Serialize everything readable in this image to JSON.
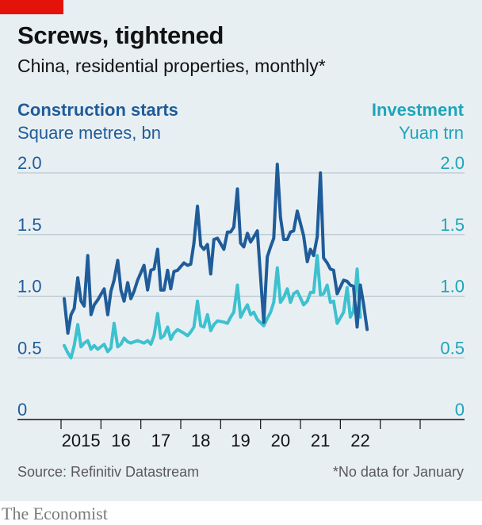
{
  "header": {
    "title": "Screws, tightened",
    "subtitle": "China, residential properties, monthly*"
  },
  "left_axis": {
    "title": "Construction starts",
    "unit": "Square metres, bn"
  },
  "right_axis": {
    "title": "Investment",
    "unit": "Yuan trn"
  },
  "footer": {
    "source": "Source: Refinitiv Datastream",
    "note": "*No data for January",
    "logo": "The Economist"
  },
  "colors": {
    "construction": "#1f5c99",
    "investment": "#3ec1cf",
    "accent": "#e3120b"
  },
  "chart_data": {
    "type": "line",
    "title": "Screws, tightened",
    "subtitle": "China, residential properties, monthly*",
    "x_ticks": [
      "2015",
      "16",
      "17",
      "18",
      "19",
      "20",
      "21",
      "22"
    ],
    "y_ticks": [
      "0",
      "0.5",
      "1.0",
      "1.5",
      "2.0"
    ],
    "y_tick_values": [
      0,
      0.5,
      1.0,
      1.5,
      2.0
    ],
    "ylim": [
      0,
      2.0
    ],
    "xlim": [
      2014,
      2023
    ],
    "grid": true,
    "series": [
      {
        "name": "Construction starts",
        "axis": "left",
        "unit": "Square metres, bn",
        "points": [
          [
            2014.08,
            0.98
          ],
          [
            2014.17,
            0.7
          ],
          [
            2014.25,
            0.85
          ],
          [
            2014.33,
            0.9
          ],
          [
            2014.42,
            1.15
          ],
          [
            2014.5,
            0.96
          ],
          [
            2014.58,
            0.92
          ],
          [
            2014.67,
            1.33
          ],
          [
            2014.75,
            0.85
          ],
          [
            2014.83,
            0.93
          ],
          [
            2014.92,
            0.97
          ],
          [
            2015.08,
            1.06
          ],
          [
            2015.17,
            0.85
          ],
          [
            2015.25,
            1.04
          ],
          [
            2015.33,
            1.13
          ],
          [
            2015.42,
            1.29
          ],
          [
            2015.5,
            1.05
          ],
          [
            2015.58,
            0.96
          ],
          [
            2015.67,
            1.11
          ],
          [
            2015.75,
            0.98
          ],
          [
            2015.83,
            1.04
          ],
          [
            2015.92,
            1.13
          ],
          [
            2016.08,
            1.25
          ],
          [
            2016.17,
            1.05
          ],
          [
            2016.25,
            1.21
          ],
          [
            2016.33,
            1.22
          ],
          [
            2016.42,
            1.38
          ],
          [
            2016.5,
            1.05
          ],
          [
            2016.58,
            1.05
          ],
          [
            2016.67,
            1.21
          ],
          [
            2016.75,
            1.06
          ],
          [
            2016.83,
            1.2
          ],
          [
            2016.92,
            1.21
          ],
          [
            2017.08,
            1.27
          ],
          [
            2017.17,
            1.25
          ],
          [
            2017.25,
            1.26
          ],
          [
            2017.33,
            1.43
          ],
          [
            2017.42,
            1.73
          ],
          [
            2017.5,
            1.41
          ],
          [
            2017.58,
            1.38
          ],
          [
            2017.67,
            1.42
          ],
          [
            2017.75,
            1.18
          ],
          [
            2017.83,
            1.46
          ],
          [
            2017.92,
            1.47
          ],
          [
            2018.08,
            1.38
          ],
          [
            2018.17,
            1.52
          ],
          [
            2018.25,
            1.52
          ],
          [
            2018.33,
            1.56
          ],
          [
            2018.42,
            1.87
          ],
          [
            2018.5,
            1.43
          ],
          [
            2018.58,
            1.4
          ],
          [
            2018.67,
            1.51
          ],
          [
            2018.75,
            1.44
          ],
          [
            2018.83,
            1.48
          ],
          [
            2018.92,
            1.53
          ],
          [
            2019.08,
            0.79
          ],
          [
            2019.17,
            1.32
          ],
          [
            2019.25,
            1.4
          ],
          [
            2019.33,
            1.47
          ],
          [
            2019.42,
            2.07
          ],
          [
            2019.5,
            1.64
          ],
          [
            2019.58,
            1.46
          ],
          [
            2019.67,
            1.46
          ],
          [
            2019.75,
            1.52
          ],
          [
            2019.83,
            1.53
          ],
          [
            2019.92,
            1.69
          ],
          [
            2020.08,
            1.49
          ],
          [
            2020.17,
            1.28
          ],
          [
            2020.25,
            1.38
          ],
          [
            2020.33,
            1.33
          ],
          [
            2020.42,
            1.48
          ],
          [
            2020.5,
            2.0
          ],
          [
            2020.58,
            1.31
          ],
          [
            2020.67,
            1.27
          ],
          [
            2020.75,
            1.22
          ],
          [
            2020.83,
            1.21
          ],
          [
            2020.92,
            1.02
          ],
          [
            2021.08,
            1.13
          ],
          [
            2021.17,
            1.12
          ],
          [
            2021.25,
            1.09
          ],
          [
            2021.33,
            1.08
          ],
          [
            2021.42,
            0.75
          ],
          [
            2021.5,
            1.09
          ],
          [
            2021.58,
            0.94
          ],
          [
            2021.67,
            0.73
          ]
        ]
      },
      {
        "name": "Investment",
        "axis": "right",
        "unit": "Yuan trn",
        "points": [
          [
            2014.08,
            0.6
          ],
          [
            2014.17,
            0.54
          ],
          [
            2014.25,
            0.5
          ],
          [
            2014.33,
            0.6
          ],
          [
            2014.42,
            0.77
          ],
          [
            2014.5,
            0.59
          ],
          [
            2014.58,
            0.62
          ],
          [
            2014.67,
            0.64
          ],
          [
            2014.75,
            0.57
          ],
          [
            2014.83,
            0.6
          ],
          [
            2014.92,
            0.57
          ],
          [
            2015.08,
            0.61
          ],
          [
            2015.17,
            0.55
          ],
          [
            2015.25,
            0.58
          ],
          [
            2015.33,
            0.78
          ],
          [
            2015.42,
            0.59
          ],
          [
            2015.5,
            0.61
          ],
          [
            2015.58,
            0.66
          ],
          [
            2015.67,
            0.63
          ],
          [
            2015.75,
            0.62
          ],
          [
            2015.83,
            0.63
          ],
          [
            2015.92,
            0.64
          ],
          [
            2016.08,
            0.62
          ],
          [
            2016.17,
            0.64
          ],
          [
            2016.25,
            0.61
          ],
          [
            2016.33,
            0.68
          ],
          [
            2016.42,
            0.86
          ],
          [
            2016.5,
            0.66
          ],
          [
            2016.58,
            0.68
          ],
          [
            2016.67,
            0.75
          ],
          [
            2016.75,
            0.65
          ],
          [
            2016.83,
            0.7
          ],
          [
            2016.92,
            0.73
          ],
          [
            2017.08,
            0.7
          ],
          [
            2017.17,
            0.68
          ],
          [
            2017.25,
            0.71
          ],
          [
            2017.33,
            0.75
          ],
          [
            2017.42,
            0.96
          ],
          [
            2017.5,
            0.76
          ],
          [
            2017.58,
            0.75
          ],
          [
            2017.67,
            0.85
          ],
          [
            2017.75,
            0.72
          ],
          [
            2017.83,
            0.77
          ],
          [
            2017.92,
            0.8
          ],
          [
            2018.08,
            0.79
          ],
          [
            2018.17,
            0.78
          ],
          [
            2018.25,
            0.83
          ],
          [
            2018.33,
            0.87
          ],
          [
            2018.42,
            1.09
          ],
          [
            2018.5,
            0.83
          ],
          [
            2018.58,
            0.88
          ],
          [
            2018.67,
            0.93
          ],
          [
            2018.75,
            0.85
          ],
          [
            2018.83,
            0.87
          ],
          [
            2018.92,
            0.81
          ],
          [
            2019.08,
            0.76
          ],
          [
            2019.17,
            0.82
          ],
          [
            2019.25,
            0.87
          ],
          [
            2019.33,
            0.95
          ],
          [
            2019.42,
            1.23
          ],
          [
            2019.5,
            0.95
          ],
          [
            2019.58,
            0.99
          ],
          [
            2019.67,
            1.06
          ],
          [
            2019.75,
            0.95
          ],
          [
            2019.83,
            1.02
          ],
          [
            2019.92,
            1.04
          ],
          [
            2020.08,
            0.93
          ],
          [
            2020.17,
            0.96
          ],
          [
            2020.25,
            1.03
          ],
          [
            2020.33,
            1.03
          ],
          [
            2020.42,
            1.33
          ],
          [
            2020.5,
            1.01
          ],
          [
            2020.58,
            1.02
          ],
          [
            2020.67,
            1.09
          ],
          [
            2020.75,
            0.95
          ],
          [
            2020.83,
            0.96
          ],
          [
            2020.92,
            0.78
          ],
          [
            2021.08,
            0.87
          ],
          [
            2021.17,
            1.07
          ],
          [
            2021.25,
            0.83
          ],
          [
            2021.33,
            0.88
          ],
          [
            2021.42,
            1.22
          ],
          [
            2021.5,
            0.83
          ]
        ]
      }
    ]
  }
}
